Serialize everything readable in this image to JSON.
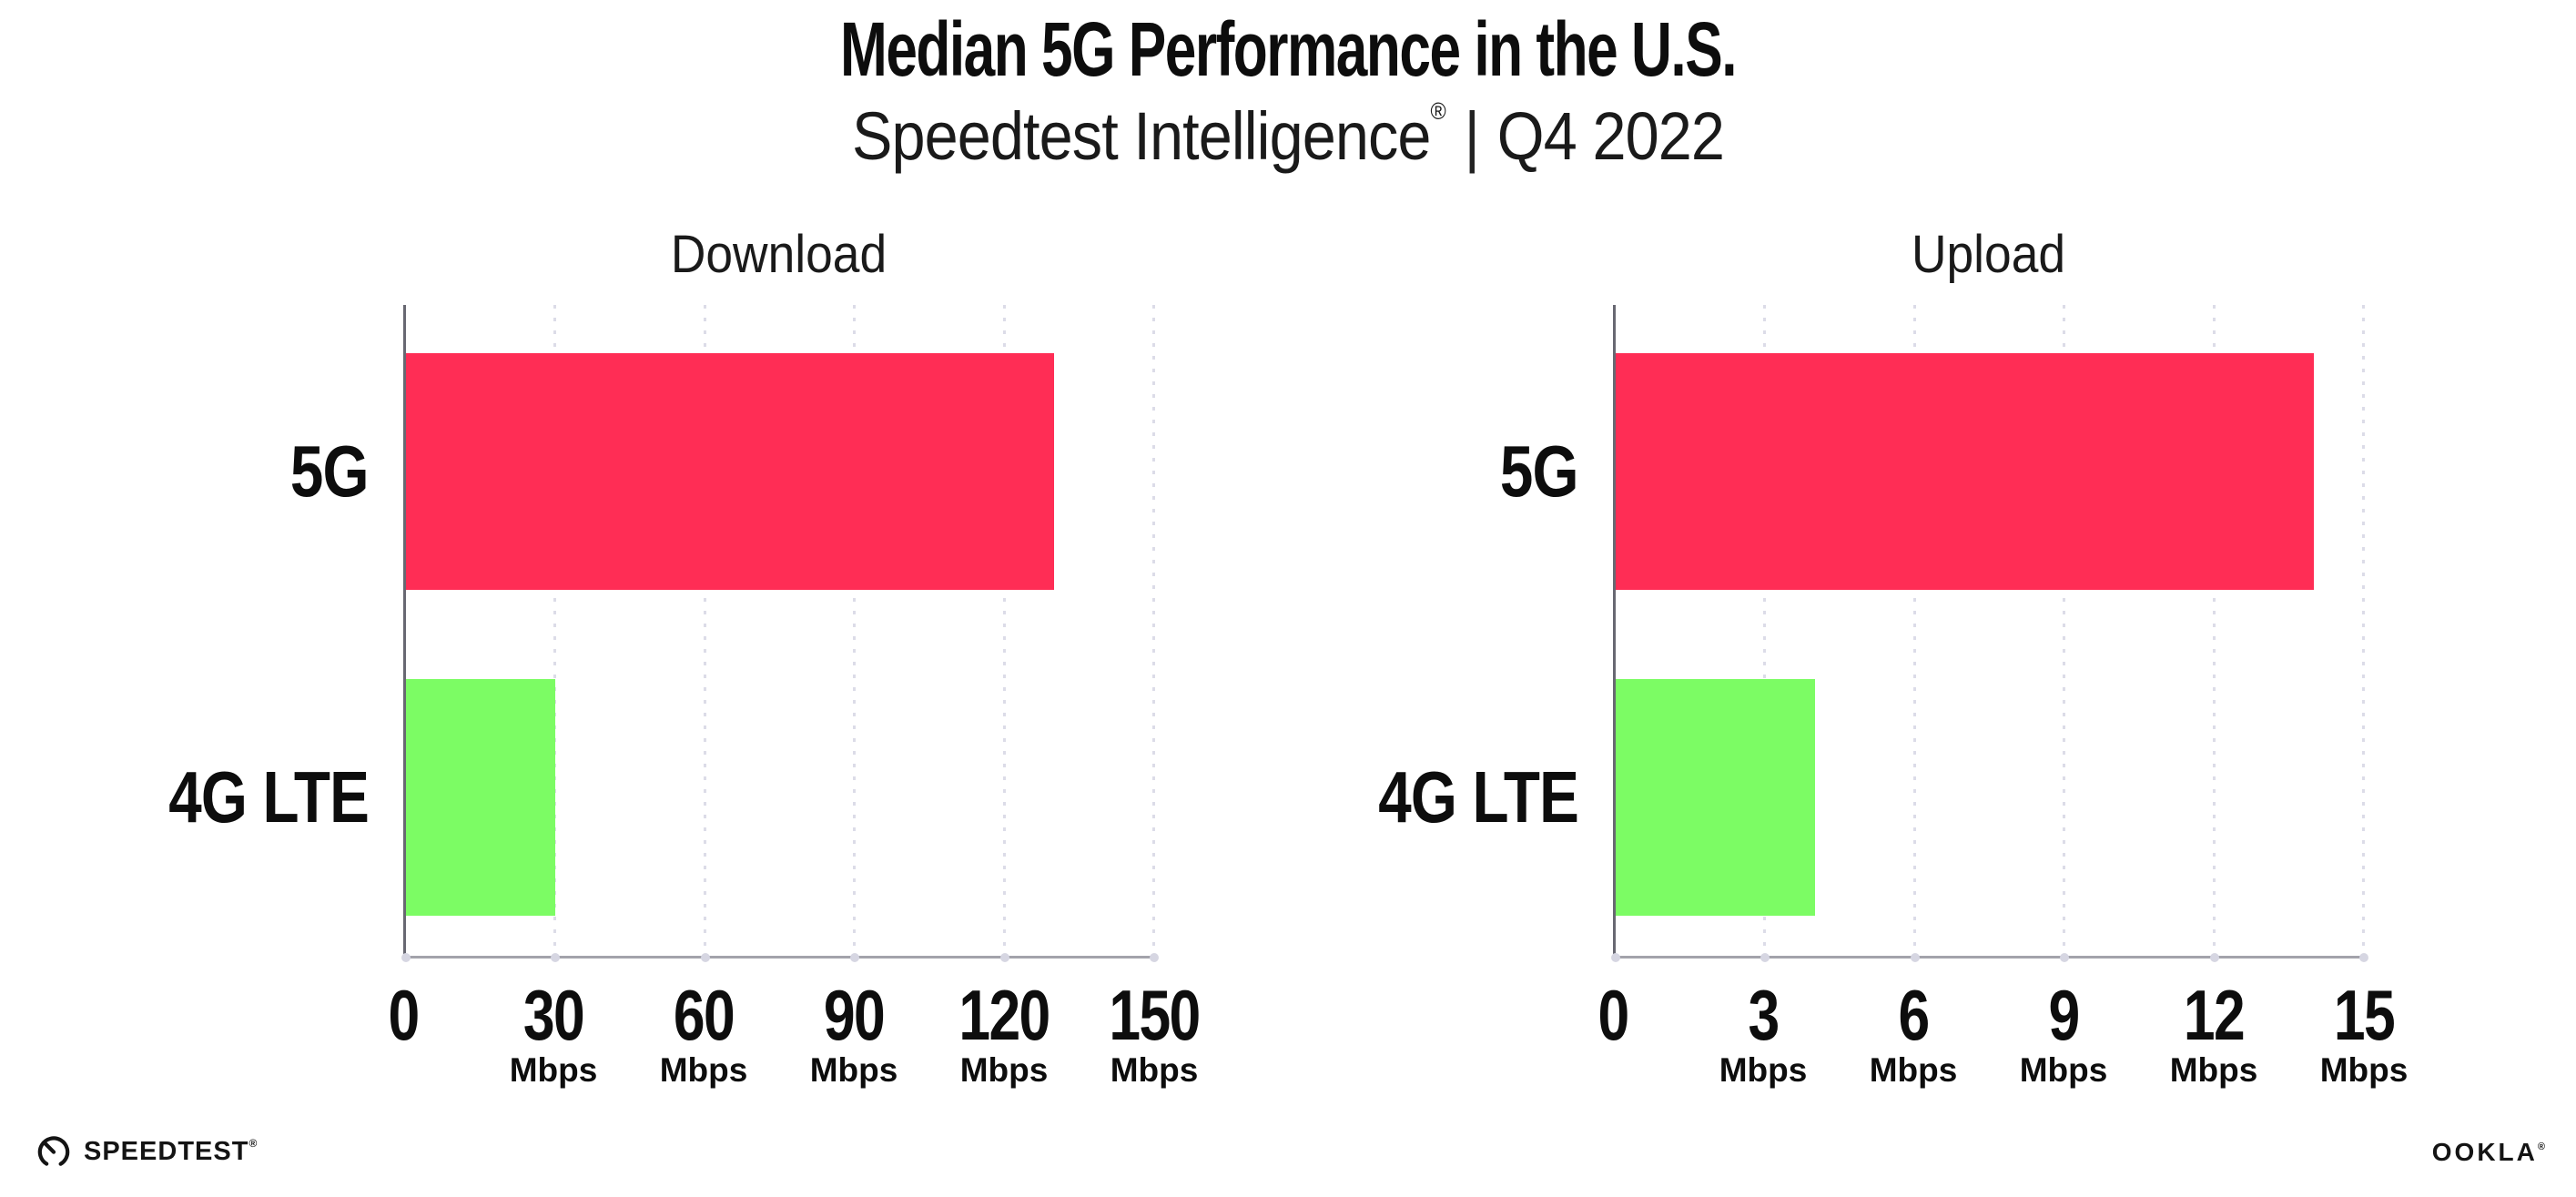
{
  "header": {
    "title": "Median 5G Performance in the U.S.",
    "subtitle": {
      "brand": "Speedtest Intelligence",
      "registered": "®",
      "divider": "|",
      "period": "Q4 2022"
    }
  },
  "colors": {
    "bar_5g": "#FF2D55",
    "bar_4g": "#7CFC64",
    "gridline": "#DCDCE8",
    "axis_left": "#686872",
    "axis_bottom": "#A3A3AB",
    "text": "#111111"
  },
  "chart_data": [
    {
      "type": "bar",
      "orientation": "horizontal",
      "title": "Download",
      "categories": [
        "5G",
        "4G LTE"
      ],
      "values": [
        130,
        30
      ],
      "unit": "Mbps",
      "xlim": [
        0,
        150
      ],
      "grid": "dotted-vertical",
      "legend": "none",
      "bar_colors": [
        "#FF2D55",
        "#7CFC64"
      ],
      "ticks": [
        {
          "value": 0,
          "label": "0",
          "unit": ""
        },
        {
          "value": 30,
          "label": "30",
          "unit": "Mbps"
        },
        {
          "value": 60,
          "label": "60",
          "unit": "Mbps"
        },
        {
          "value": 90,
          "label": "90",
          "unit": "Mbps"
        },
        {
          "value": 120,
          "label": "120",
          "unit": "Mbps"
        },
        {
          "value": 150,
          "label": "150",
          "unit": "Mbps"
        }
      ]
    },
    {
      "type": "bar",
      "orientation": "horizontal",
      "title": "Upload",
      "categories": [
        "5G",
        "4G LTE"
      ],
      "values": [
        14,
        4
      ],
      "unit": "Mbps",
      "xlim": [
        0,
        15
      ],
      "grid": "dotted-vertical",
      "legend": "none",
      "bar_colors": [
        "#FF2D55",
        "#7CFC64"
      ],
      "ticks": [
        {
          "value": 0,
          "label": "0",
          "unit": ""
        },
        {
          "value": 3,
          "label": "3",
          "unit": "Mbps"
        },
        {
          "value": 6,
          "label": "6",
          "unit": "Mbps"
        },
        {
          "value": 9,
          "label": "9",
          "unit": "Mbps"
        },
        {
          "value": 12,
          "label": "12",
          "unit": "Mbps"
        },
        {
          "value": 15,
          "label": "15",
          "unit": "Mbps"
        }
      ]
    }
  ],
  "footer": {
    "speedtest": {
      "label": "SPEEDTEST",
      "registered": "®"
    },
    "ookla": {
      "label": "OOKLA",
      "registered": "®"
    }
  }
}
